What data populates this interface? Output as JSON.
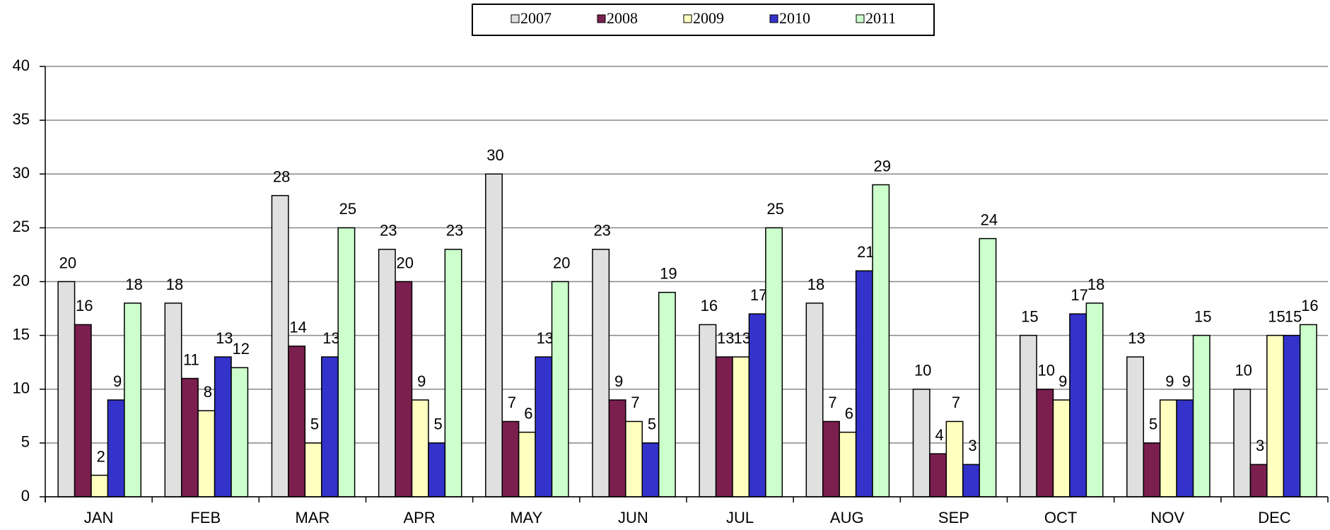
{
  "chart_data": {
    "type": "bar",
    "categories": [
      "JAN",
      "FEB",
      "MAR",
      "APR",
      "MAY",
      "JUN",
      "JUL",
      "AUG",
      "SEP",
      "OCT",
      "NOV",
      "DEC"
    ],
    "series": [
      {
        "name": "2007",
        "color": "#e0e0e0",
        "values": [
          20,
          18,
          28,
          23,
          30,
          23,
          16,
          18,
          10,
          15,
          13,
          10
        ]
      },
      {
        "name": "2008",
        "color": "#7b1f4f",
        "values": [
          16,
          11,
          14,
          20,
          7,
          9,
          13,
          7,
          4,
          10,
          5,
          3
        ]
      },
      {
        "name": "2009",
        "color": "#ffffc0",
        "values": [
          2,
          8,
          5,
          9,
          6,
          7,
          13,
          6,
          7,
          9,
          9,
          15
        ]
      },
      {
        "name": "2010",
        "color": "#3333cc",
        "values": [
          9,
          13,
          13,
          5,
          13,
          5,
          17,
          21,
          3,
          17,
          9,
          15
        ]
      },
      {
        "name": "2011",
        "color": "#ccffcc",
        "values": [
          18,
          12,
          25,
          23,
          20,
          19,
          25,
          29,
          24,
          18,
          15,
          16
        ]
      }
    ],
    "ylim": [
      0,
      40
    ],
    "yticks": [
      0,
      5,
      10,
      15,
      20,
      25,
      30,
      35,
      40
    ],
    "grid": true,
    "legend": "top",
    "data_labels": true
  }
}
